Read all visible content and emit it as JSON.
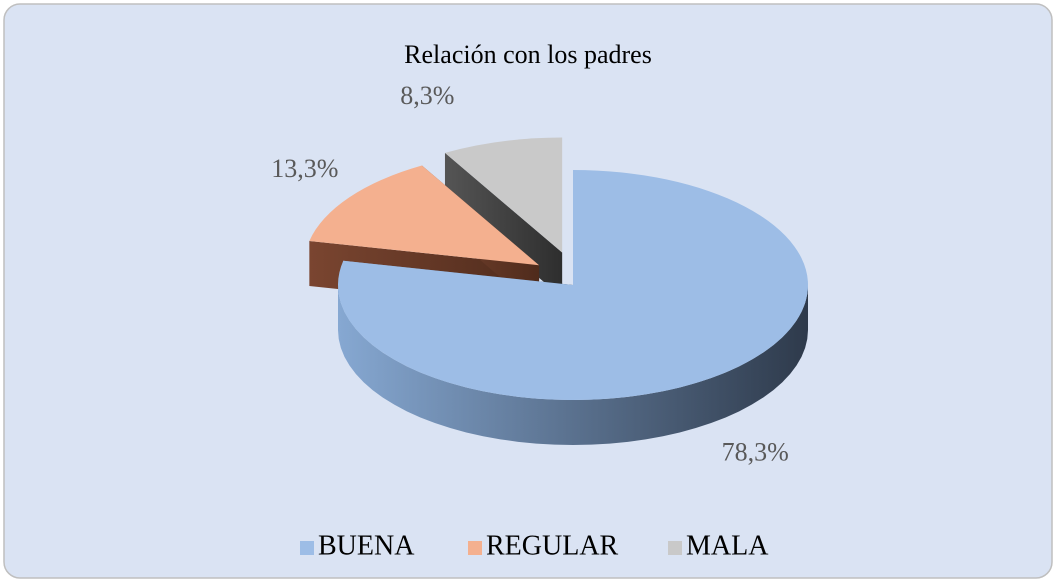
{
  "chart_data": {
    "type": "pie",
    "title": "Relación con los padres",
    "categories": [
      "BUENA",
      "REGULAR",
      "MALA"
    ],
    "values": [
      78.3,
      13.3,
      8.3
    ],
    "value_labels": [
      "78,3%",
      "13,3%",
      "8,3%"
    ],
    "colors": [
      "#9dbde6",
      "#f4b08f",
      "#c9c9c9"
    ],
    "legend": "bottom"
  }
}
